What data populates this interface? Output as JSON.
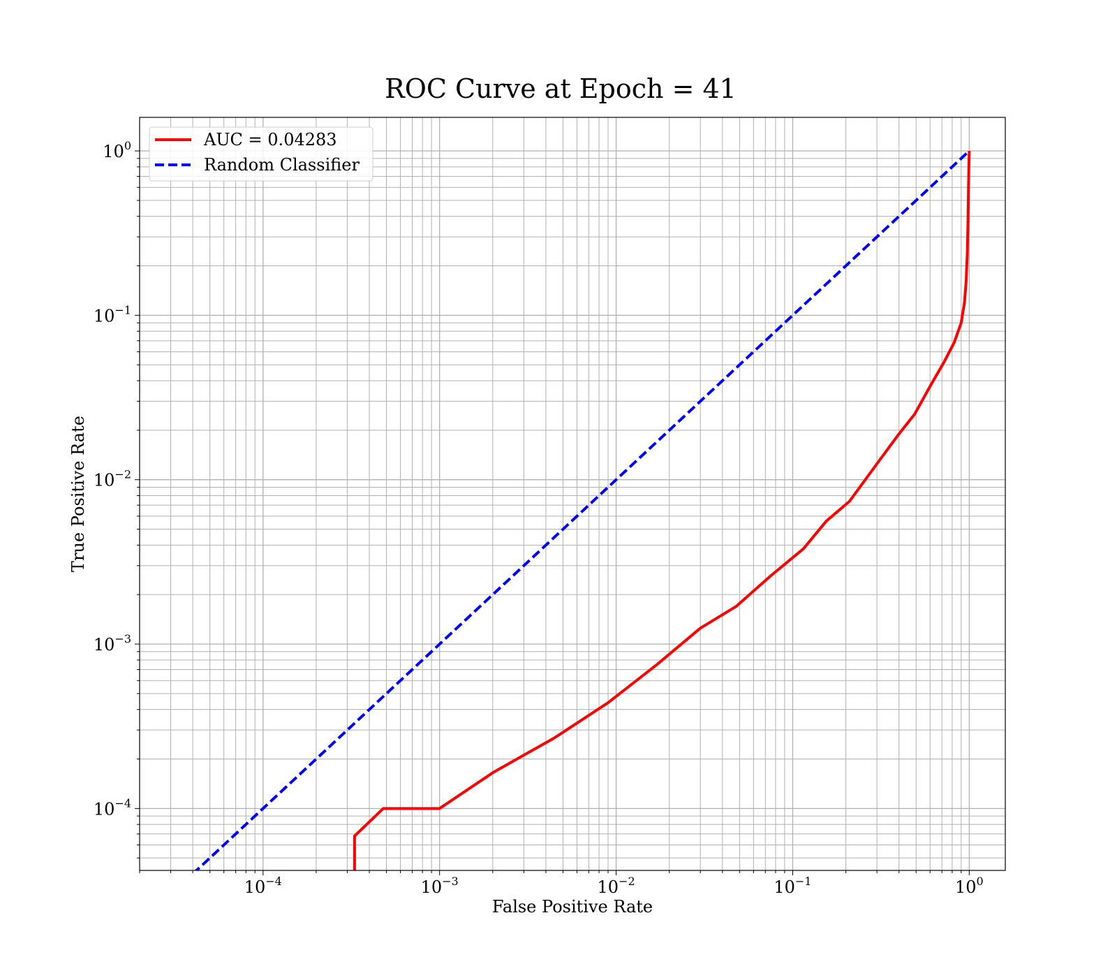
{
  "chart_data": {
    "type": "line",
    "title": "ROC Curve at Epoch = 41",
    "xlabel": "False Positive Rate",
    "ylabel": "True Positive Rate",
    "xscale": "log",
    "yscale": "log",
    "xlim": [
      2e-05,
      1.6
    ],
    "ylim": [
      4.2e-05,
      1.6
    ],
    "grid": "both-major-and-minor",
    "legend_position": "upper-left",
    "x_ticks": [
      {
        "value": 0.0001,
        "base": "10",
        "exp": "−4"
      },
      {
        "value": 0.001,
        "base": "10",
        "exp": "−3"
      },
      {
        "value": 0.01,
        "base": "10",
        "exp": "−2"
      },
      {
        "value": 0.1,
        "base": "10",
        "exp": "−1"
      },
      {
        "value": 1,
        "base": "10",
        "exp": "0"
      }
    ],
    "y_ticks": [
      {
        "value": 0.0001,
        "base": "10",
        "exp": "−4"
      },
      {
        "value": 0.001,
        "base": "10",
        "exp": "−3"
      },
      {
        "value": 0.01,
        "base": "10",
        "exp": "−2"
      },
      {
        "value": 0.1,
        "base": "10",
        "exp": "−1"
      },
      {
        "value": 1,
        "base": "10",
        "exp": "0"
      }
    ],
    "series": [
      {
        "name": "AUC = 0.04283",
        "color": "#ff0000",
        "style": "solid",
        "x": [
          0.00033,
          0.00033,
          0.00048,
          0.001,
          0.002,
          0.0045,
          0.009,
          0.017,
          0.03,
          0.048,
          0.075,
          0.115,
          0.155,
          0.21,
          0.3,
          0.4,
          0.49,
          0.6,
          0.72,
          0.82,
          0.9,
          0.94,
          0.96,
          0.975,
          0.985,
          0.99,
          0.995,
          1.0
        ],
        "y": [
          4.2e-05,
          6.8e-05,
          0.0001,
          0.0001,
          0.000165,
          0.00027,
          0.00044,
          0.00075,
          0.00125,
          0.0017,
          0.0026,
          0.0038,
          0.0056,
          0.0074,
          0.0125,
          0.019,
          0.025,
          0.037,
          0.052,
          0.068,
          0.09,
          0.12,
          0.16,
          0.24,
          0.4,
          0.6,
          0.8,
          1.0
        ]
      },
      {
        "name": "Random Classifier",
        "color": "#0000ff",
        "style": "dashed",
        "x": [
          4e-05,
          1.0
        ],
        "y": [
          4e-05,
          1.0
        ]
      }
    ]
  }
}
